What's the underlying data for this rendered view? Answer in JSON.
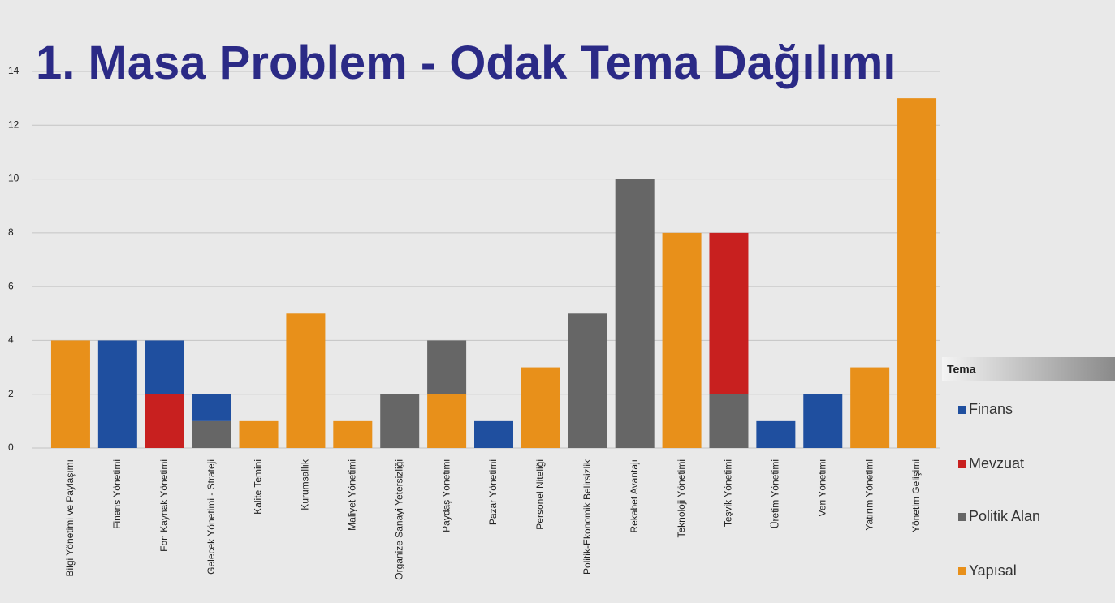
{
  "chart_data": {
    "type": "stacked-bar",
    "title": "1. Masa Problem - Odak Tema Dağılımı",
    "legend_title": "Tema",
    "categories": [
      "Bilgi Yönetimi ve Paylaşımı",
      "Finans Yönetimi",
      "Fon Kaynak Yönetimi",
      "Gelecek Yönetimi - Strateji",
      "Kalite Temini",
      "Kurumsallık",
      "Maliyet Yönetimi",
      "Organize Sanayi Yetersizliği",
      "Paydaş Yönetimi",
      "Pazar Yönetimi",
      "Personel Niteliği",
      "Politik-Ekonomik Belirsizlik",
      "Rekabet Avantajı",
      "Teknoloji Yönetimi",
      "Teşvik Yönetimi",
      "Üretim Yönetimi",
      "Veri Yönetimi",
      "Yatırım Yönetimi",
      "Yönetim Gelişimi"
    ],
    "series": [
      {
        "name": "Finans",
        "color": "#1f4f9f",
        "values": [
          null,
          4,
          2,
          1,
          null,
          null,
          null,
          null,
          null,
          1,
          null,
          null,
          null,
          null,
          null,
          1,
          2,
          null,
          null
        ]
      },
      {
        "name": "Mevzuat",
        "color": "#c8201f",
        "values": [
          null,
          null,
          2,
          null,
          null,
          null,
          null,
          null,
          null,
          null,
          null,
          null,
          null,
          null,
          6,
          null,
          null,
          null,
          null
        ]
      },
      {
        "name": "Politik Alan",
        "color": "#666666",
        "values": [
          null,
          null,
          null,
          1,
          null,
          null,
          null,
          2,
          2,
          null,
          null,
          5,
          10,
          null,
          2,
          null,
          null,
          null,
          null
        ]
      },
      {
        "name": "Yapısal",
        "color": "#e8901a",
        "values": [
          4,
          null,
          null,
          null,
          1,
          5,
          1,
          null,
          2,
          null,
          3,
          null,
          null,
          8,
          null,
          null,
          null,
          3,
          13
        ]
      }
    ],
    "ylim": [
      0,
      14
    ],
    "yticks": [
      0,
      2,
      4,
      6,
      8,
      10,
      12,
      14
    ],
    "grid": true,
    "legend": "right"
  }
}
